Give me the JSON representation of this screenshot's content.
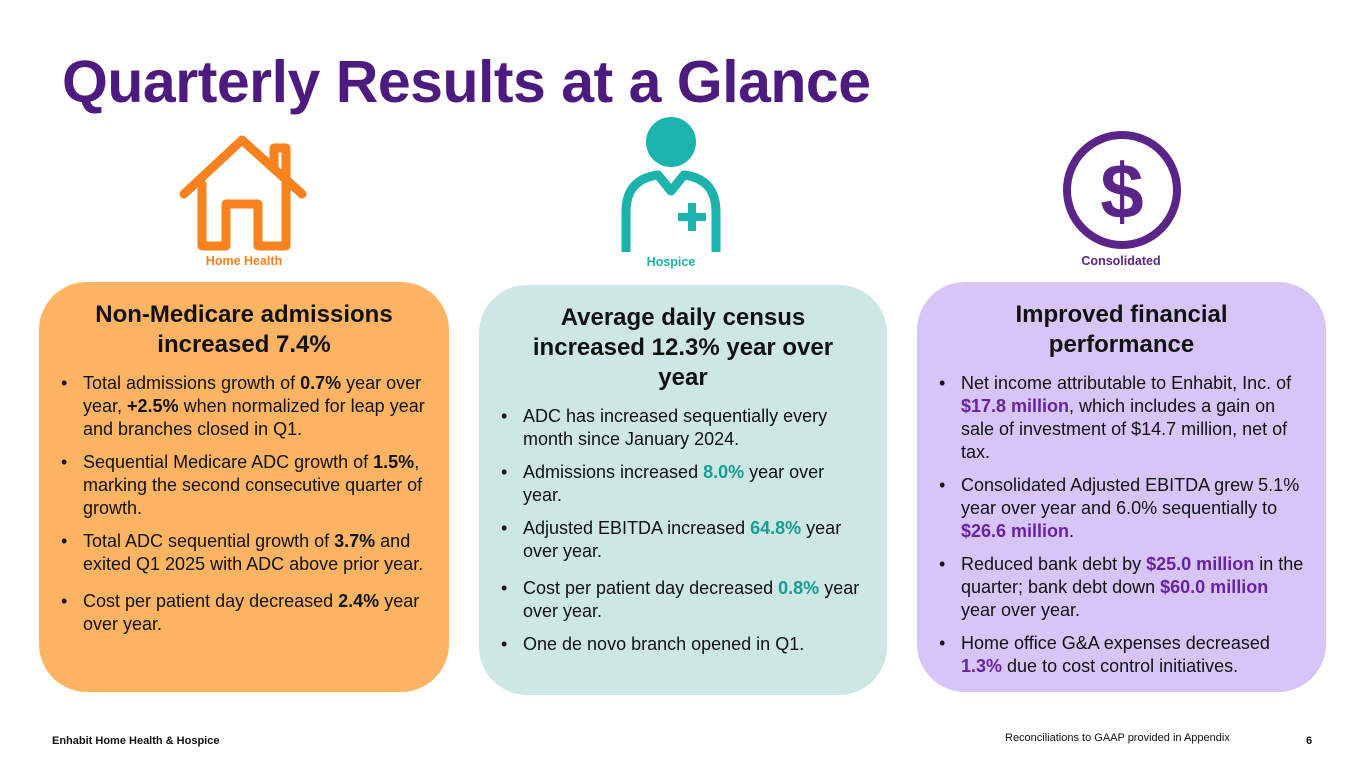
{
  "title": "Quarterly Results at a Glance",
  "colors": {
    "title": "#4d1a80",
    "home_health": "#f7821e",
    "hospice": "#1cb3ad",
    "consolidated": "#5b2489"
  },
  "segments": {
    "home_health": {
      "label": "Home Health",
      "icon": "house-icon",
      "heading": "Non-Medicare admissions increased 7.4%",
      "bullets": [
        [
          "Total admissions growth of ",
          "0.7%",
          " year over year, ",
          "+2.5%",
          " when normalized for leap year and branches closed in Q1."
        ],
        [
          "Sequential Medicare ADC growth of ",
          "1.5%",
          ", marking the second consecutive quarter of growth."
        ],
        [
          "Total ADC sequential growth of ",
          "3.7%",
          " and exited Q1 2025 with ADC above prior year."
        ],
        [
          "Cost per patient day decreased ",
          "2.4%",
          " year over year."
        ]
      ]
    },
    "hospice": {
      "label": "Hospice",
      "icon": "nurse-icon",
      "heading": "Average daily census increased 12.3% year over year",
      "bullets": [
        [
          "ADC has increased sequentially every month since January 2024."
        ],
        [
          "Admissions increased ",
          "8.0%",
          " year over year."
        ],
        [
          "Adjusted EBITDA increased ",
          "64.8%",
          " year over year."
        ],
        [
          "Cost per patient day decreased ",
          "0.8%",
          " year over year."
        ],
        [
          "One de novo branch opened in Q1."
        ]
      ]
    },
    "consolidated": {
      "label": "Consolidated",
      "icon": "dollar-icon",
      "heading": "Improved financial performance",
      "bullets": [
        [
          "Net income attributable to Enhabit, Inc. of ",
          "$17.8 million",
          ", which includes a gain on sale of investment of $14.7 million, net of tax."
        ],
        [
          "Consolidated Adjusted EBITDA grew 5.1% year over year and 6.0% sequentially to ",
          "$26.6 million",
          "."
        ],
        [
          "Reduced bank debt by ",
          "$25.0 million",
          " in the quarter; bank debt down ",
          "$60.0 million",
          " year over year."
        ],
        [
          "Home office G&A expenses decreased ",
          "1.3%",
          " due to cost control initiatives."
        ]
      ]
    }
  },
  "footer": {
    "company": "Enhabit Home Health & Hospice",
    "note": "Reconciliations to GAAP provided in Appendix",
    "page": "6"
  }
}
